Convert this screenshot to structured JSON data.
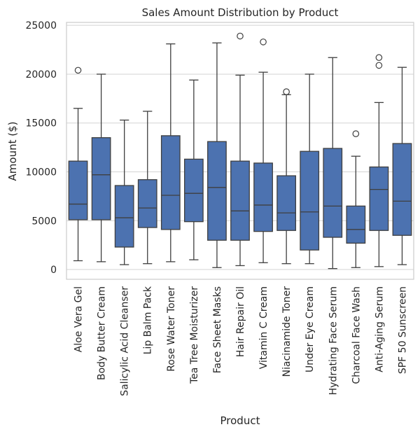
{
  "chart_data": {
    "type": "box",
    "title": "Sales Amount Distribution by Product",
    "xlabel": "Product",
    "ylabel": "Amount ($)",
    "ylim": [
      -1000,
      25300
    ],
    "yticks": [
      0,
      5000,
      10000,
      15000,
      20000,
      25000
    ],
    "ytick_labels": [
      "0",
      "5000",
      "10000",
      "15000",
      "20000",
      "25000"
    ],
    "grid": true,
    "box_color": "#4c72b0",
    "categories": [
      "Aloe Vera Gel",
      "Body Butter Cream",
      "Salicylic Acid Cleanser",
      "Lip Balm Pack",
      "Rose Water Toner",
      "Tea Tree Moisturizer",
      "Face Sheet Masks",
      "Hair Repair Oil",
      "Vitamin C Cream",
      "Niacinamide Toner",
      "Under Eye Cream",
      "Hydrating Face Serum",
      "Charcoal Face Wash",
      "Anti-Aging Serum",
      "SPF 50 Sunscreen"
    ],
    "boxes": [
      {
        "whislo": 900,
        "q1": 5100,
        "med": 6700,
        "q3": 11100,
        "whishi": 16500,
        "fliers": [
          20400
        ]
      },
      {
        "whislo": 800,
        "q1": 5100,
        "med": 9700,
        "q3": 13500,
        "whishi": 20000,
        "fliers": []
      },
      {
        "whislo": 500,
        "q1": 2300,
        "med": 5300,
        "q3": 8600,
        "whishi": 15300,
        "fliers": []
      },
      {
        "whislo": 600,
        "q1": 4300,
        "med": 6300,
        "q3": 9200,
        "whishi": 16200,
        "fliers": []
      },
      {
        "whislo": 800,
        "q1": 4100,
        "med": 7600,
        "q3": 13700,
        "whishi": 23100,
        "fliers": []
      },
      {
        "whislo": 1000,
        "q1": 4900,
        "med": 7800,
        "q3": 11300,
        "whishi": 19400,
        "fliers": []
      },
      {
        "whislo": 200,
        "q1": 3000,
        "med": 8400,
        "q3": 13100,
        "whishi": 23200,
        "fliers": []
      },
      {
        "whislo": 400,
        "q1": 3000,
        "med": 6000,
        "q3": 11100,
        "whishi": 19900,
        "fliers": [
          23900
        ]
      },
      {
        "whislo": 700,
        "q1": 3900,
        "med": 6600,
        "q3": 10900,
        "whishi": 20200,
        "fliers": [
          23300
        ]
      },
      {
        "whislo": 600,
        "q1": 4000,
        "med": 5800,
        "q3": 9600,
        "whishi": 17900,
        "fliers": [
          18200
        ]
      },
      {
        "whislo": 600,
        "q1": 2000,
        "med": 5900,
        "q3": 12100,
        "whishi": 20000,
        "fliers": []
      },
      {
        "whislo": 100,
        "q1": 3300,
        "med": 6500,
        "q3": 12400,
        "whishi": 21700,
        "fliers": []
      },
      {
        "whislo": 200,
        "q1": 2700,
        "med": 4100,
        "q3": 6500,
        "whishi": 11600,
        "fliers": [
          13900
        ]
      },
      {
        "whislo": 300,
        "q1": 4000,
        "med": 8200,
        "q3": 10500,
        "whishi": 17100,
        "fliers": [
          21700,
          20900
        ]
      },
      {
        "whislo": 500,
        "q1": 3500,
        "med": 7000,
        "q3": 12900,
        "whishi": 20700,
        "fliers": []
      }
    ]
  }
}
